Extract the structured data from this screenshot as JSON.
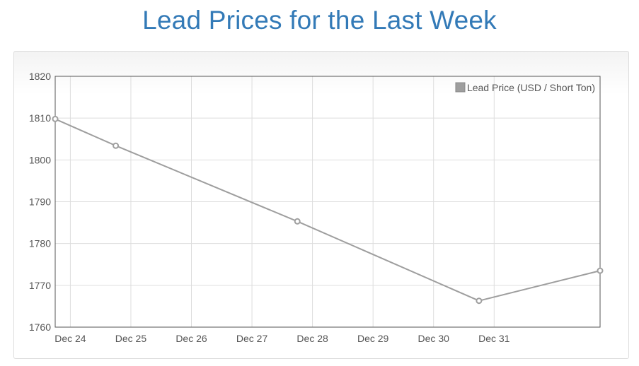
{
  "page": {
    "title": "Lead Prices for the Last Week"
  },
  "chart_data": {
    "type": "line",
    "title": "Lead Prices for the Last Week",
    "xlabel": "",
    "ylabel": "",
    "x_axis_type": "date",
    "xlim": [
      "2017-12-23T18:00",
      "2018-01-01T18:00"
    ],
    "ylim": [
      1760,
      1820
    ],
    "y_ticks": [
      1760,
      1770,
      1780,
      1790,
      1800,
      1810,
      1820
    ],
    "x_ticks": [
      {
        "date": "2017-12-24",
        "label": "Dec 24"
      },
      {
        "date": "2017-12-25",
        "label": "Dec 25"
      },
      {
        "date": "2017-12-26",
        "label": "Dec 26"
      },
      {
        "date": "2017-12-27",
        "label": "Dec 27"
      },
      {
        "date": "2017-12-28",
        "label": "Dec 28"
      },
      {
        "date": "2017-12-29",
        "label": "Dec 29"
      },
      {
        "date": "2017-12-30",
        "label": "Dec 30"
      },
      {
        "date": "2017-12-31",
        "label": "Dec 31"
      }
    ],
    "grid": true,
    "legend": {
      "position": "top-right"
    },
    "series": [
      {
        "name": "Lead Price (USD / Short Ton)",
        "color": "#9e9e9e",
        "points": [
          {
            "x": "2017-12-23T18:00",
            "y": 1809.8
          },
          {
            "x": "2017-12-24T18:00",
            "y": 1803.4
          },
          {
            "x": "2017-12-27T18:00",
            "y": 1785.3
          },
          {
            "x": "2017-12-30T18:00",
            "y": 1766.3
          },
          {
            "x": "2018-01-01T18:00",
            "y": 1773.5
          }
        ]
      }
    ]
  }
}
